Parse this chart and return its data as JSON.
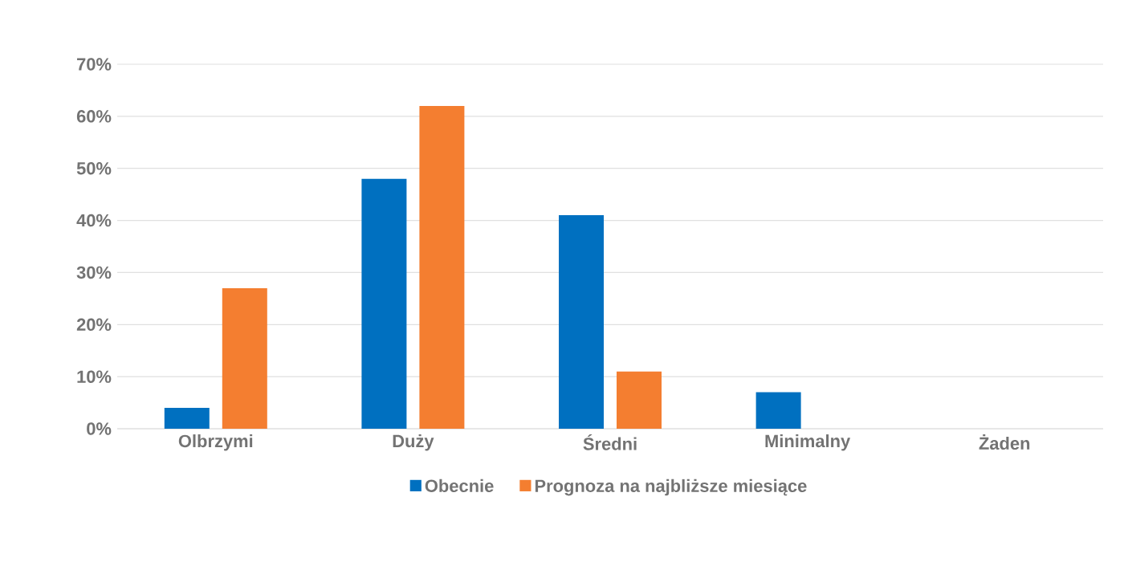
{
  "chart_data": {
    "type": "bar",
    "categories": [
      "Olbrzymi",
      "Duży",
      "Średni",
      "Minimalny",
      "Żaden"
    ],
    "series": [
      {
        "name": "Obecnie",
        "color": "#0070c0",
        "values": [
          4,
          48,
          41,
          7,
          0
        ]
      },
      {
        "name": "Prognoza na najbliższe miesiące",
        "color": "#f47e30",
        "values": [
          27,
          62,
          11,
          0,
          0
        ]
      }
    ],
    "ylim": [
      0,
      70
    ],
    "yticks": [
      {
        "value": 0,
        "label": "0%"
      },
      {
        "value": 10,
        "label": "10%"
      },
      {
        "value": 20,
        "label": "20%"
      },
      {
        "value": 30,
        "label": "30%"
      },
      {
        "value": 40,
        "label": "40%"
      },
      {
        "value": 50,
        "label": "50%"
      },
      {
        "value": 60,
        "label": "60%"
      },
      {
        "value": 70,
        "label": "70%"
      }
    ],
    "grid": "y",
    "legend": "bottom"
  }
}
